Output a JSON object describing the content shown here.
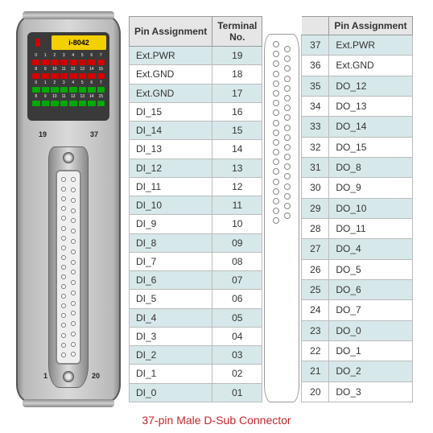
{
  "module": {
    "label": "i-8042",
    "led_rows": [
      {
        "tag": "D/O",
        "nums": [
          "0",
          "1",
          "2",
          "3",
          "4",
          "5",
          "6",
          "7"
        ],
        "color": "r"
      },
      {
        "tag": "",
        "nums": [
          "8",
          "9",
          "10",
          "11",
          "12",
          "13",
          "14",
          "15"
        ],
        "color": "r"
      },
      {
        "tag": "D/I",
        "nums": [
          "0",
          "1",
          "2",
          "3",
          "4",
          "5",
          "6",
          "7"
        ],
        "color": "g"
      },
      {
        "tag": "",
        "nums": [
          "8",
          "9",
          "10",
          "11",
          "12",
          "13",
          "14",
          "15"
        ],
        "color": "g"
      }
    ],
    "corner_labels": {
      "tl": "19",
      "tr": "37",
      "bl": "1",
      "br": "20"
    }
  },
  "headers": {
    "pin_assign": "Pin Assignment",
    "terminal": "Terminal No."
  },
  "left_rows": [
    {
      "assign": "Ext.PWR",
      "num": "19"
    },
    {
      "assign": "Ext.GND",
      "num": "18"
    },
    {
      "assign": "Ext.GND",
      "num": "17"
    },
    {
      "assign": "DI_15",
      "num": "16"
    },
    {
      "assign": "DI_14",
      "num": "15"
    },
    {
      "assign": "DI_13",
      "num": "14"
    },
    {
      "assign": "DI_12",
      "num": "13"
    },
    {
      "assign": "DI_11",
      "num": "12"
    },
    {
      "assign": "DI_10",
      "num": "11"
    },
    {
      "assign": "DI_9",
      "num": "10"
    },
    {
      "assign": "DI_8",
      "num": "09"
    },
    {
      "assign": "DI_7",
      "num": "08"
    },
    {
      "assign": "DI_6",
      "num": "07"
    },
    {
      "assign": "DI_5",
      "num": "06"
    },
    {
      "assign": "DI_4",
      "num": "05"
    },
    {
      "assign": "DI_3",
      "num": "04"
    },
    {
      "assign": "DI_2",
      "num": "03"
    },
    {
      "assign": "DI_1",
      "num": "02"
    },
    {
      "assign": "DI_0",
      "num": "01"
    }
  ],
  "right_rows": [
    {
      "num": "37",
      "assign": "Ext.PWR"
    },
    {
      "num": "36",
      "assign": "Ext.GND"
    },
    {
      "num": "35",
      "assign": "DO_12"
    },
    {
      "num": "34",
      "assign": "DO_13"
    },
    {
      "num": "33",
      "assign": "DO_14"
    },
    {
      "num": "32",
      "assign": "DO_15"
    },
    {
      "num": "31",
      "assign": "DO_8"
    },
    {
      "num": "30",
      "assign": "DO_9"
    },
    {
      "num": "29",
      "assign": "DO_10"
    },
    {
      "num": "28",
      "assign": "DO_11"
    },
    {
      "num": "27",
      "assign": "DO_4"
    },
    {
      "num": "26",
      "assign": "DO_5"
    },
    {
      "num": "25",
      "assign": "DO_6"
    },
    {
      "num": "24",
      "assign": "DO_7"
    },
    {
      "num": "23",
      "assign": "DO_0"
    },
    {
      "num": "22",
      "assign": "DO_1"
    },
    {
      "num": "21",
      "assign": "DO_2"
    },
    {
      "num": "20",
      "assign": "DO_3"
    }
  ],
  "caption": "37-pin Male D-Sub Connector",
  "schematic": {
    "left_pins": 19,
    "right_pins": 18
  },
  "colors": {
    "stripe": "#d7e8ea",
    "caption": "#c62828"
  }
}
